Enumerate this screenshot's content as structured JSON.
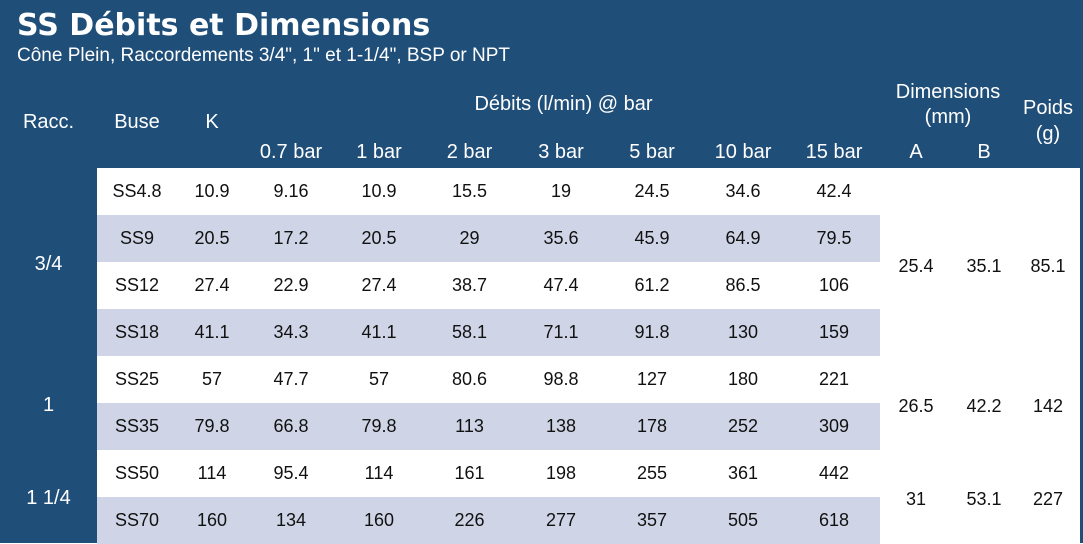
{
  "title": "SS Débits et Dimensions",
  "subtitle": "Cône Plein, Raccordements 3/4\", 1\" et 1-1/4\", BSP or NPT",
  "headers": {
    "racc": "Racc.",
    "buse": "Buse",
    "k": "K",
    "debits": "Débits (l/min) @ bar",
    "pressures": [
      "0.7 bar",
      "1 bar",
      "2 bar",
      "3 bar",
      "5 bar",
      "10 bar",
      "15 bar"
    ],
    "dimensions": "Dimensions",
    "dimensions_unit": "(mm)",
    "dim_a": "A",
    "dim_b": "B",
    "poids": "Poids",
    "poids_unit": "(g)"
  },
  "groups": [
    {
      "racc": "3/4",
      "A": "25.4",
      "B": "35.1",
      "poids": "85.1"
    },
    {
      "racc": "1",
      "A": "26.5",
      "B": "42.2",
      "poids": "142"
    },
    {
      "racc": "1 1/4",
      "A": "31",
      "B": "53.1",
      "poids": "227"
    }
  ],
  "rows": [
    {
      "buse": "SS4.8",
      "k": "10.9",
      "flows": [
        "9.16",
        "10.9",
        "15.5",
        "19",
        "24.5",
        "34.6",
        "42.4"
      ]
    },
    {
      "buse": "SS9",
      "k": "20.5",
      "flows": [
        "17.2",
        "20.5",
        "29",
        "35.6",
        "45.9",
        "64.9",
        "79.5"
      ]
    },
    {
      "buse": "SS12",
      "k": "27.4",
      "flows": [
        "22.9",
        "27.4",
        "38.7",
        "47.4",
        "61.2",
        "86.5",
        "106"
      ]
    },
    {
      "buse": "SS18",
      "k": "41.1",
      "flows": [
        "34.3",
        "41.1",
        "58.1",
        "71.1",
        "91.8",
        "130",
        "159"
      ]
    },
    {
      "buse": "SS25",
      "k": "57",
      "flows": [
        "47.7",
        "57",
        "80.6",
        "98.8",
        "127",
        "180",
        "221"
      ]
    },
    {
      "buse": "SS35",
      "k": "79.8",
      "flows": [
        "66.8",
        "79.8",
        "113",
        "138",
        "178",
        "252",
        "309"
      ]
    },
    {
      "buse": "SS50",
      "k": "114",
      "flows": [
        "95.4",
        "114",
        "161",
        "198",
        "255",
        "361",
        "442"
      ]
    },
    {
      "buse": "SS70",
      "k": "160",
      "flows": [
        "134",
        "160",
        "226",
        "277",
        "357",
        "505",
        "618"
      ]
    }
  ],
  "colors": {
    "header_bg": "#1f4e79",
    "row_shade": "#cfd5e6",
    "header_text": "#ffffff"
  }
}
